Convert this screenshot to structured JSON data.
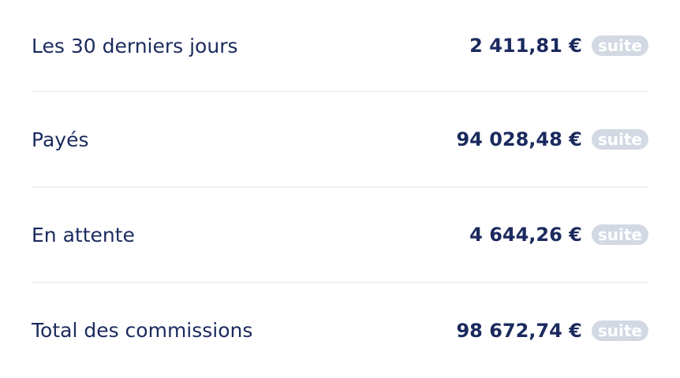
{
  "rows": [
    {
      "label": "Les 30 derniers jours",
      "amount": "2 411,81 €",
      "link": "suite"
    },
    {
      "label": "Payés",
      "amount": "94 028,48 €",
      "link": "suite"
    },
    {
      "label": "En attente",
      "amount": "4 644,26 €",
      "link": "suite"
    },
    {
      "label": "Total des commissions",
      "amount": "98 672,74 €",
      "link": "suite"
    }
  ]
}
